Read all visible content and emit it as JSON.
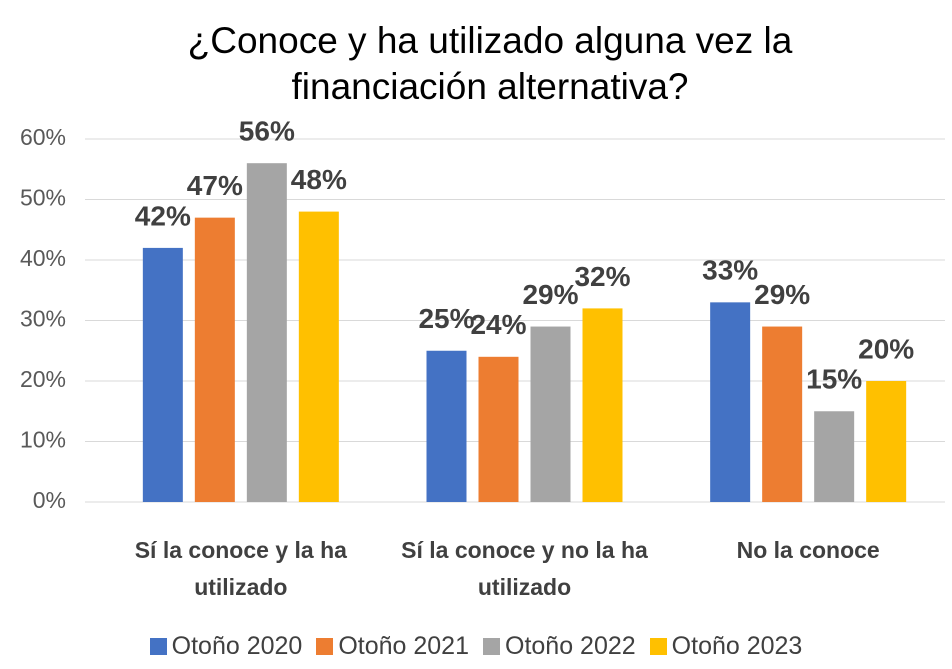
{
  "chart_data": {
    "type": "bar",
    "title": "¿Conoce y ha utilizado alguna vez la financiación alternativa?",
    "categories": [
      "Sí la conoce y la ha utilizado",
      "Sí la conoce y no la ha utilizado",
      "No la conoce"
    ],
    "series": [
      {
        "name": "Otoño 2020",
        "color": "#4472c4",
        "values": [
          42,
          25,
          33
        ],
        "value_labels": [
          "42%",
          "25%",
          "33%"
        ]
      },
      {
        "name": "Otoño 2021",
        "color": "#ed7d31",
        "values": [
          47,
          24,
          29
        ],
        "value_labels": [
          "47%",
          "24%",
          "29%"
        ]
      },
      {
        "name": "Otoño 2022",
        "color": "#a5a5a5",
        "values": [
          56,
          29,
          15
        ],
        "value_labels": [
          "56%",
          "29%",
          "15%"
        ]
      },
      {
        "name": "Otoño 2023",
        "color": "#ffc000",
        "values": [
          48,
          32,
          20
        ],
        "value_labels": [
          "48%",
          "32%",
          "20%"
        ]
      }
    ],
    "ylim": [
      0,
      60
    ],
    "yticks": [
      {
        "value": 0,
        "label": "0%"
      },
      {
        "value": 10,
        "label": "10%"
      },
      {
        "value": 20,
        "label": "20%"
      },
      {
        "value": 30,
        "label": "30%"
      },
      {
        "value": 40,
        "label": "40%"
      },
      {
        "value": 50,
        "label": "50%"
      },
      {
        "value": 60,
        "label": "60%"
      }
    ],
    "grid": true,
    "legend": "bottom"
  }
}
